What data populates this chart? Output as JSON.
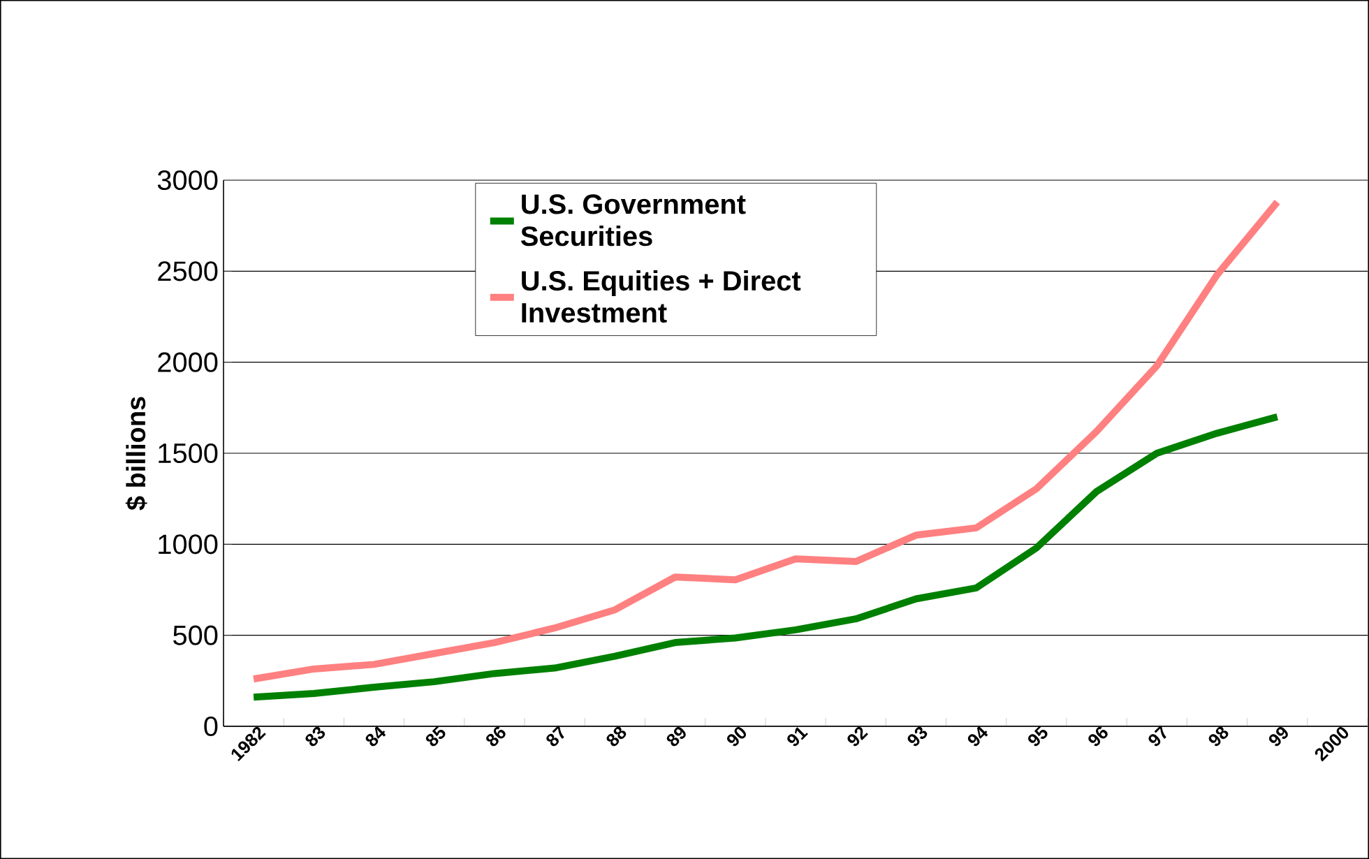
{
  "chart_data": {
    "type": "line",
    "ylabel": "$ billions",
    "categories": [
      "1982",
      "83",
      "84",
      "85",
      "86",
      "87",
      "88",
      "89",
      "90",
      "91",
      "92",
      "93",
      "94",
      "95",
      "96",
      "97",
      "98",
      "99",
      "2000"
    ],
    "series": [
      {
        "name": "U.S. Government Securities",
        "color": "#008000",
        "values": [
          160,
          180,
          215,
          245,
          290,
          320,
          385,
          460,
          485,
          530,
          590,
          700,
          760,
          980,
          1290,
          1500,
          1610,
          1700,
          null
        ]
      },
      {
        "name": "U.S. Equities + Direct Investment",
        "color": "#ff8080",
        "values": [
          260,
          315,
          340,
          400,
          460,
          540,
          640,
          820,
          805,
          920,
          905,
          1050,
          1090,
          1305,
          1620,
          1980,
          2480,
          2880,
          null
        ]
      }
    ],
    "ylim": [
      0,
      3000
    ],
    "yticks": [
      0,
      500,
      1000,
      1500,
      2000,
      2500,
      3000
    ],
    "grid": "y",
    "legend": "top",
    "marker": "none",
    "line_style": "solid"
  }
}
